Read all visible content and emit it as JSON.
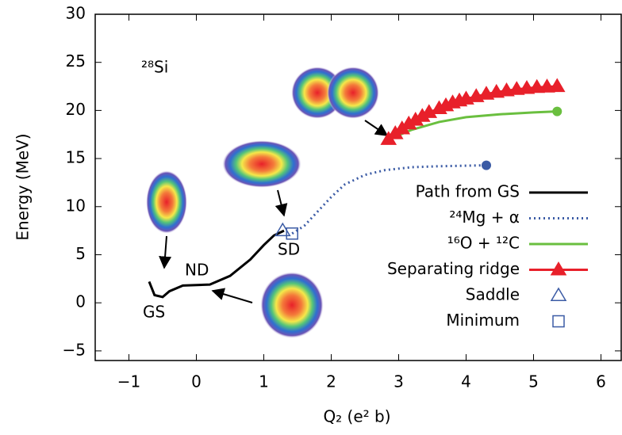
{
  "chart_data": {
    "type": "line",
    "ylabel": "Energy (MeV)",
    "xlabel": "Q₂ (e² b)",
    "annotations": [
      "²⁸Si",
      "GS",
      "ND",
      "SD"
    ],
    "xlim": [
      -1.5,
      6.3
    ],
    "ylim": [
      -6,
      30
    ],
    "xticks": [
      {
        "value": -1,
        "label": "−1"
      },
      0,
      1,
      2,
      3,
      4,
      5,
      6
    ],
    "yticks": [
      {
        "value": -5,
        "label": "−5"
      },
      0,
      5,
      10,
      15,
      20,
      25,
      30
    ],
    "legend": "right",
    "series": [
      {
        "name": "Path from GS",
        "color": "#000000",
        "style": "solid",
        "marker": "none",
        "x": [
          -0.7,
          -0.62,
          -0.5,
          -0.4,
          -0.2,
          0.2,
          0.5,
          0.8,
          1.0,
          1.15,
          1.3
        ],
        "values": [
          2.2,
          0.8,
          0.6,
          1.2,
          1.8,
          1.9,
          2.8,
          4.5,
          6.0,
          7.0,
          7.5
        ]
      },
      {
        "name": "²⁴Mg + α",
        "color": "#3b5ba5",
        "style": "dotted",
        "marker": "none",
        "end_marker": "circle",
        "x": [
          1.42,
          1.6,
          1.8,
          2.0,
          2.2,
          2.5,
          2.8,
          3.2,
          3.6,
          4.3
        ],
        "values": [
          7.2,
          8.0,
          9.5,
          11.0,
          12.3,
          13.3,
          13.8,
          14.1,
          14.2,
          14.3
        ]
      },
      {
        "name": "¹⁶O + ¹²C",
        "color": "#6abf3f",
        "style": "solid",
        "marker": "none",
        "end_marker": "circle",
        "x": [
          2.85,
          3.2,
          3.6,
          4.0,
          4.5,
          5.0,
          5.35
        ],
        "values": [
          17.0,
          18.0,
          18.8,
          19.3,
          19.6,
          19.8,
          19.9
        ]
      },
      {
        "name": "Separating ridge",
        "color": "#e8202a",
        "style": "solid",
        "marker": "triangle-filled",
        "x": [
          2.85,
          2.95,
          3.05,
          3.15,
          3.25,
          3.35,
          3.45,
          3.6,
          3.7,
          3.8,
          3.9,
          4.0,
          4.15,
          4.3,
          4.45,
          4.6,
          4.75,
          4.9,
          5.05,
          5.2,
          5.35
        ],
        "values": [
          17.0,
          17.6,
          18.1,
          18.6,
          19.0,
          19.4,
          19.8,
          20.2,
          20.5,
          20.8,
          21.0,
          21.2,
          21.45,
          21.7,
          21.9,
          22.05,
          22.2,
          22.3,
          22.4,
          22.45,
          22.5
        ]
      },
      {
        "name": "Saddle",
        "color": "#3b5ba5",
        "style": "none",
        "marker": "triangle-open",
        "x": [
          1.28
        ],
        "values": [
          7.5
        ]
      },
      {
        "name": "Minimum",
        "color": "#3b5ba5",
        "style": "none",
        "marker": "square-open",
        "x": [
          1.42
        ],
        "values": [
          7.2
        ]
      }
    ]
  }
}
